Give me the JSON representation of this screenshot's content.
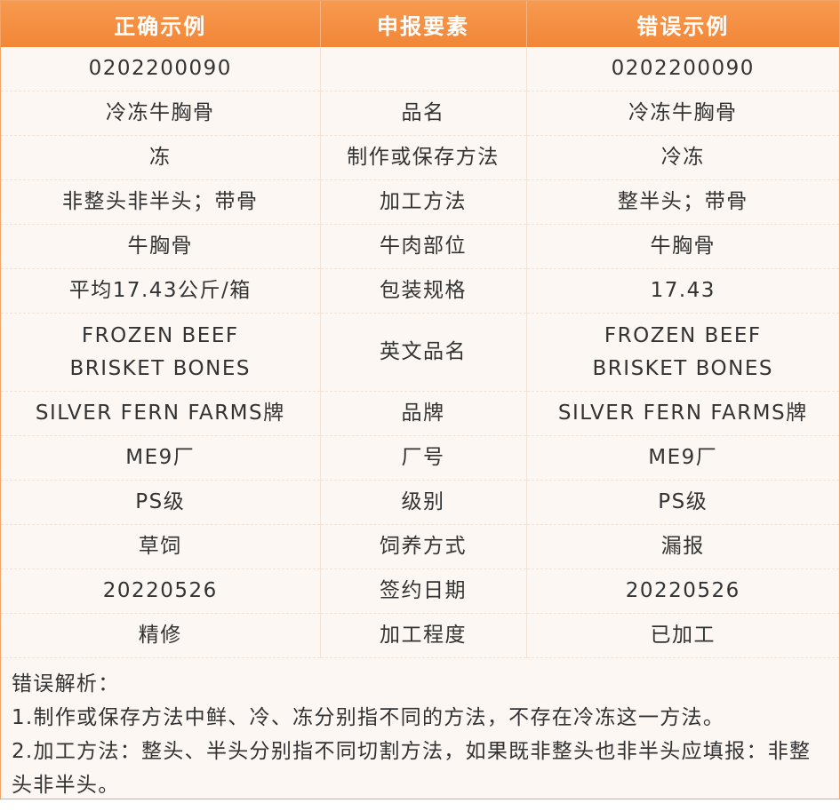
{
  "table": {
    "header": [
      "正确示例",
      "申报要素",
      "错误示例"
    ],
    "rows": [
      [
        "0202200090",
        null,
        "0202200090"
      ],
      [
        "冷冻牛胸骨",
        "品名",
        "冷冻牛胸骨"
      ],
      [
        "冻",
        "制作或保存方法",
        "冷冻"
      ],
      [
        "非整头非半头；带骨",
        "加工方法",
        "整半头；带骨"
      ],
      [
        "牛胸骨",
        "牛肉部位",
        "牛胸骨"
      ],
      [
        "平均17.43公斤/箱",
        "包装规格",
        "17.43"
      ],
      [
        [
          "FROZEN BEEF",
          "BRISKET BONES"
        ],
        "英文品名",
        [
          "FROZEN BEEF",
          "BRISKET BONES"
        ]
      ],
      [
        "SILVER FERN FARMS牌",
        "品牌",
        "SILVER FERN FARMS牌"
      ],
      [
        "ME9厂",
        "厂号",
        "ME9厂"
      ],
      [
        "PS级",
        "级别",
        "PS级"
      ],
      [
        "草饲",
        "饲养方式",
        "漏报"
      ],
      [
        "20220526",
        "签约日期",
        "20220526"
      ],
      [
        "精修",
        "加工程度",
        "已加工"
      ]
    ]
  },
  "notes": {
    "title": "错误解析：",
    "items": [
      "1.制作或保存方法中鲜、冷、冻分别指不同的方法，不存在冷冻这一方法。",
      "2.加工方法：整头、半头分别指不同切割方法，如果既非整头也非半头应填报：非整头非半头。"
    ]
  }
}
